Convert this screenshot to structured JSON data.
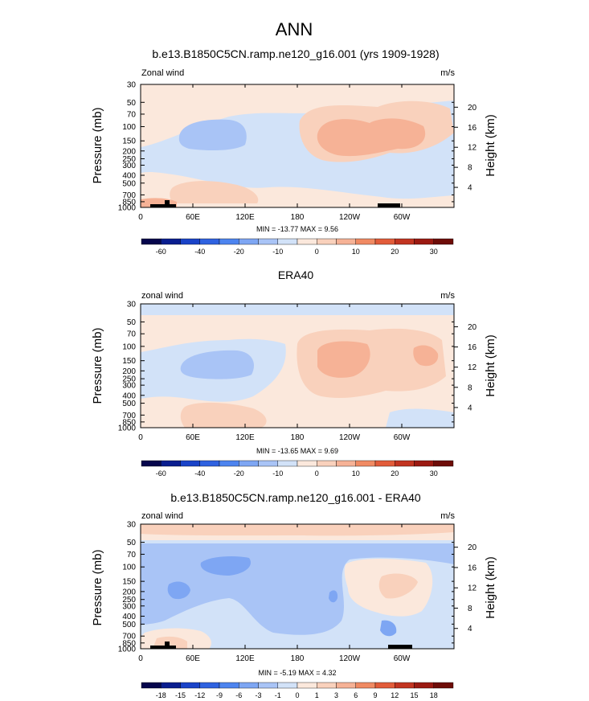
{
  "title": "ANN",
  "chart_data": [
    {
      "type": "heatmap",
      "title": "b.e13.B1850C5CN.ramp.ne120_g16.001 (yrs 1909-1928)",
      "left_label": "Zonal wind",
      "units": "m/s",
      "ylabel": "Pressure (mb)",
      "ylabel_right": "Height (km)",
      "x_ticks": [
        "0",
        "60E",
        "120E",
        "180",
        "120W",
        "60W"
      ],
      "x_tick_values": [
        0,
        60,
        120,
        180,
        240,
        300
      ],
      "xlim": [
        0,
        360
      ],
      "y_ticks": [
        "30",
        "50",
        "70",
        "100",
        "150",
        "200",
        "250",
        "300",
        "400",
        "500",
        "700",
        "850",
        "1000"
      ],
      "y_tick_values": [
        30,
        50,
        70,
        100,
        150,
        200,
        250,
        300,
        400,
        500,
        700,
        850,
        1000
      ],
      "ylim": [
        1000,
        30
      ],
      "height_ticks": [
        "4",
        "8",
        "12",
        "16",
        "20"
      ],
      "height_tick_values": [
        4,
        8,
        12,
        16,
        20
      ],
      "minmax_text": "MIN = -13.77  MAX =  9.56",
      "min": -13.77,
      "max": 9.56,
      "colorbar_labels": [
        "-60",
        "-40",
        "-20",
        "-10",
        "0",
        "10",
        "20",
        "30"
      ],
      "colorbar_colors": [
        "#06064c",
        "#0a1e8f",
        "#1a43c8",
        "#2f62e0",
        "#4d84ef",
        "#7ea6f3",
        "#a9c4f6",
        "#d2e2f8",
        "#fbe8dc",
        "#f9d1bc",
        "#f6b296",
        "#f08a63",
        "#e25c3a",
        "#c23421",
        "#9b1a12",
        "#6e0d08"
      ],
      "field": [
        {
          "x": 200,
          "y": 500,
          "value": -5
        },
        {
          "x": 40,
          "y": 150,
          "value": -10
        },
        {
          "x": 80,
          "y": 150,
          "value": -10
        },
        {
          "x": 20,
          "y": 700,
          "value": 5
        },
        {
          "x": 20,
          "y": 920,
          "value": 10
        },
        {
          "x": 80,
          "y": 750,
          "value": 8
        },
        {
          "x": 250,
          "y": 130,
          "value": 10
        },
        {
          "x": 215,
          "y": 190,
          "value": 8
        },
        {
          "x": 290,
          "y": 120,
          "value": 9
        },
        {
          "x": 335,
          "y": 130,
          "value": 5
        },
        {
          "x": 200,
          "y": 40,
          "value": 1
        }
      ]
    },
    {
      "type": "heatmap",
      "title": "ERA40",
      "left_label": "zonal wind",
      "units": "m/s",
      "ylabel": "Pressure (mb)",
      "ylabel_right": "Height (km)",
      "x_ticks": [
        "0",
        "60E",
        "120E",
        "180",
        "120W",
        "60W"
      ],
      "x_tick_values": [
        0,
        60,
        120,
        180,
        240,
        300
      ],
      "xlim": [
        0,
        360
      ],
      "y_ticks": [
        "30",
        "50",
        "70",
        "100",
        "150",
        "200",
        "250",
        "300",
        "400",
        "500",
        "700",
        "850",
        "1000"
      ],
      "y_tick_values": [
        30,
        50,
        70,
        100,
        150,
        200,
        250,
        300,
        400,
        500,
        700,
        850,
        1000
      ],
      "ylim": [
        1000,
        30
      ],
      "height_ticks": [
        "4",
        "8",
        "12",
        "16",
        "20"
      ],
      "height_tick_values": [
        4,
        8,
        12,
        16,
        20
      ],
      "minmax_text": "MIN = -13.65  MAX =  9.69",
      "min": -13.65,
      "max": 9.69,
      "colorbar_labels": [
        "-60",
        "-40",
        "-20",
        "-10",
        "0",
        "10",
        "20",
        "30"
      ],
      "colorbar_colors": [
        "#06064c",
        "#0a1e8f",
        "#1a43c8",
        "#2f62e0",
        "#4d84ef",
        "#7ea6f3",
        "#a9c4f6",
        "#d2e2f8",
        "#fbe8dc",
        "#f9d1bc",
        "#f6b296",
        "#f08a63",
        "#e25c3a",
        "#c23421",
        "#9b1a12",
        "#6e0d08"
      ],
      "field": [
        {
          "x": 30,
          "y": 30,
          "value": -3
        },
        {
          "x": 90,
          "y": 170,
          "value": -10
        },
        {
          "x": 150,
          "y": 300,
          "value": -5
        },
        {
          "x": 240,
          "y": 150,
          "value": 10
        },
        {
          "x": 320,
          "y": 140,
          "value": 8
        },
        {
          "x": 70,
          "y": 800,
          "value": 5
        },
        {
          "x": 130,
          "y": 850,
          "value": 4
        }
      ]
    },
    {
      "type": "heatmap",
      "title": "b.e13.B1850C5CN.ramp.ne120_g16.001 - ERA40",
      "left_label": "zonal wind",
      "units": "m/s",
      "ylabel": "Pressure (mb)",
      "ylabel_right": "Height (km)",
      "x_ticks": [
        "0",
        "60E",
        "120E",
        "180",
        "120W",
        "60W"
      ],
      "x_tick_values": [
        0,
        60,
        120,
        180,
        240,
        300
      ],
      "xlim": [
        0,
        360
      ],
      "y_ticks": [
        "30",
        "50",
        "70",
        "100",
        "150",
        "200",
        "250",
        "300",
        "400",
        "500",
        "700",
        "850",
        "1000"
      ],
      "y_tick_values": [
        30,
        50,
        70,
        100,
        150,
        200,
        250,
        300,
        400,
        500,
        700,
        850,
        1000
      ],
      "ylim": [
        1000,
        30
      ],
      "height_ticks": [
        "4",
        "8",
        "12",
        "16",
        "20"
      ],
      "height_tick_values": [
        4,
        8,
        12,
        16,
        20
      ],
      "minmax_text": "MIN = -5.19  MAX =  4.32",
      "min": -5.19,
      "max": 4.32,
      "colorbar_labels": [
        "-18",
        "-15",
        "-12",
        "-9",
        "-6",
        "-3",
        "-1",
        "0",
        "1",
        "3",
        "6",
        "9",
        "12",
        "15",
        "18"
      ],
      "colorbar_colors": [
        "#06064c",
        "#0a1e8f",
        "#1a43c8",
        "#2f62e0",
        "#4d84ef",
        "#7ea6f3",
        "#a9c4f6",
        "#d2e2f8",
        "#fbe8dc",
        "#f9d1bc",
        "#f6b296",
        "#f08a63",
        "#e25c3a",
        "#c23421",
        "#9b1a12",
        "#6e0d08"
      ],
      "field": [
        {
          "x": 180,
          "y": 33,
          "value": 3
        },
        {
          "x": 180,
          "y": 300,
          "value": -2
        },
        {
          "x": 95,
          "y": 100,
          "value": -4
        },
        {
          "x": 40,
          "y": 200,
          "value": -4
        },
        {
          "x": 220,
          "y": 400,
          "value": -3
        },
        {
          "x": 290,
          "y": 150,
          "value": 2
        },
        {
          "x": 60,
          "y": 800,
          "value": 1
        },
        {
          "x": 290,
          "y": 780,
          "value": -4
        }
      ]
    }
  ]
}
